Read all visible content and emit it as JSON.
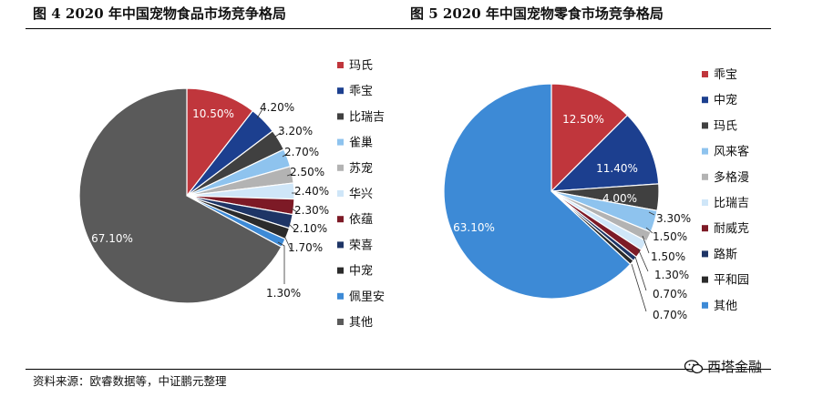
{
  "source_note": "资料来源：欧睿数据等，中证鹏元整理",
  "watermark": "西塔金融",
  "chart_data": [
    {
      "type": "pie",
      "title": "图 4  2020 年中国宠物食品市场竞争格局",
      "legend_position": "right",
      "categories": [
        "玛氏",
        "乖宝",
        "比瑞吉",
        "雀巢",
        "苏宠",
        "华兴",
        "依蕴",
        "荣喜",
        "中宠",
        "佩里安",
        "其他"
      ],
      "values": [
        10.5,
        4.2,
        3.2,
        2.7,
        2.5,
        2.4,
        2.3,
        2.1,
        1.7,
        1.3,
        67.1
      ],
      "labels": [
        "10.50%",
        "4.20%",
        "3.20%",
        "2.70%",
        "2.50%",
        "2.40%",
        "2.30%",
        "2.10%",
        "1.70%",
        "1.30%",
        "67.10%"
      ],
      "colors": [
        "#c0363c",
        "#1c3f8f",
        "#404040",
        "#8ec3ee",
        "#b3b3b3",
        "#cfe6f8",
        "#7d1a26",
        "#1e3566",
        "#2b2b2b",
        "#3d8ad6",
        "#5a5a5a"
      ]
    },
    {
      "type": "pie",
      "title": "图 5  2020 年中国宠物零食市场竞争格局",
      "legend_position": "right",
      "categories": [
        "乖宝",
        "中宠",
        "玛氏",
        "风来客",
        "多格漫",
        "比瑞吉",
        "耐威克",
        "路斯",
        "平和园",
        "其他"
      ],
      "values": [
        12.5,
        11.4,
        4.0,
        3.3,
        1.5,
        1.5,
        1.3,
        0.7,
        0.7,
        63.1
      ],
      "labels": [
        "12.50%",
        "11.40%",
        "4.00%",
        "3.30%",
        "1.50%",
        "1.50%",
        "1.30%",
        "0.70%",
        "0.70%",
        "63.10%"
      ],
      "colors": [
        "#c0363c",
        "#1c3f8f",
        "#404040",
        "#8ec3ee",
        "#b3b3b3",
        "#cfe6f8",
        "#7d1a26",
        "#1e3566",
        "#2b2b2b",
        "#3d8ad6"
      ]
    }
  ]
}
